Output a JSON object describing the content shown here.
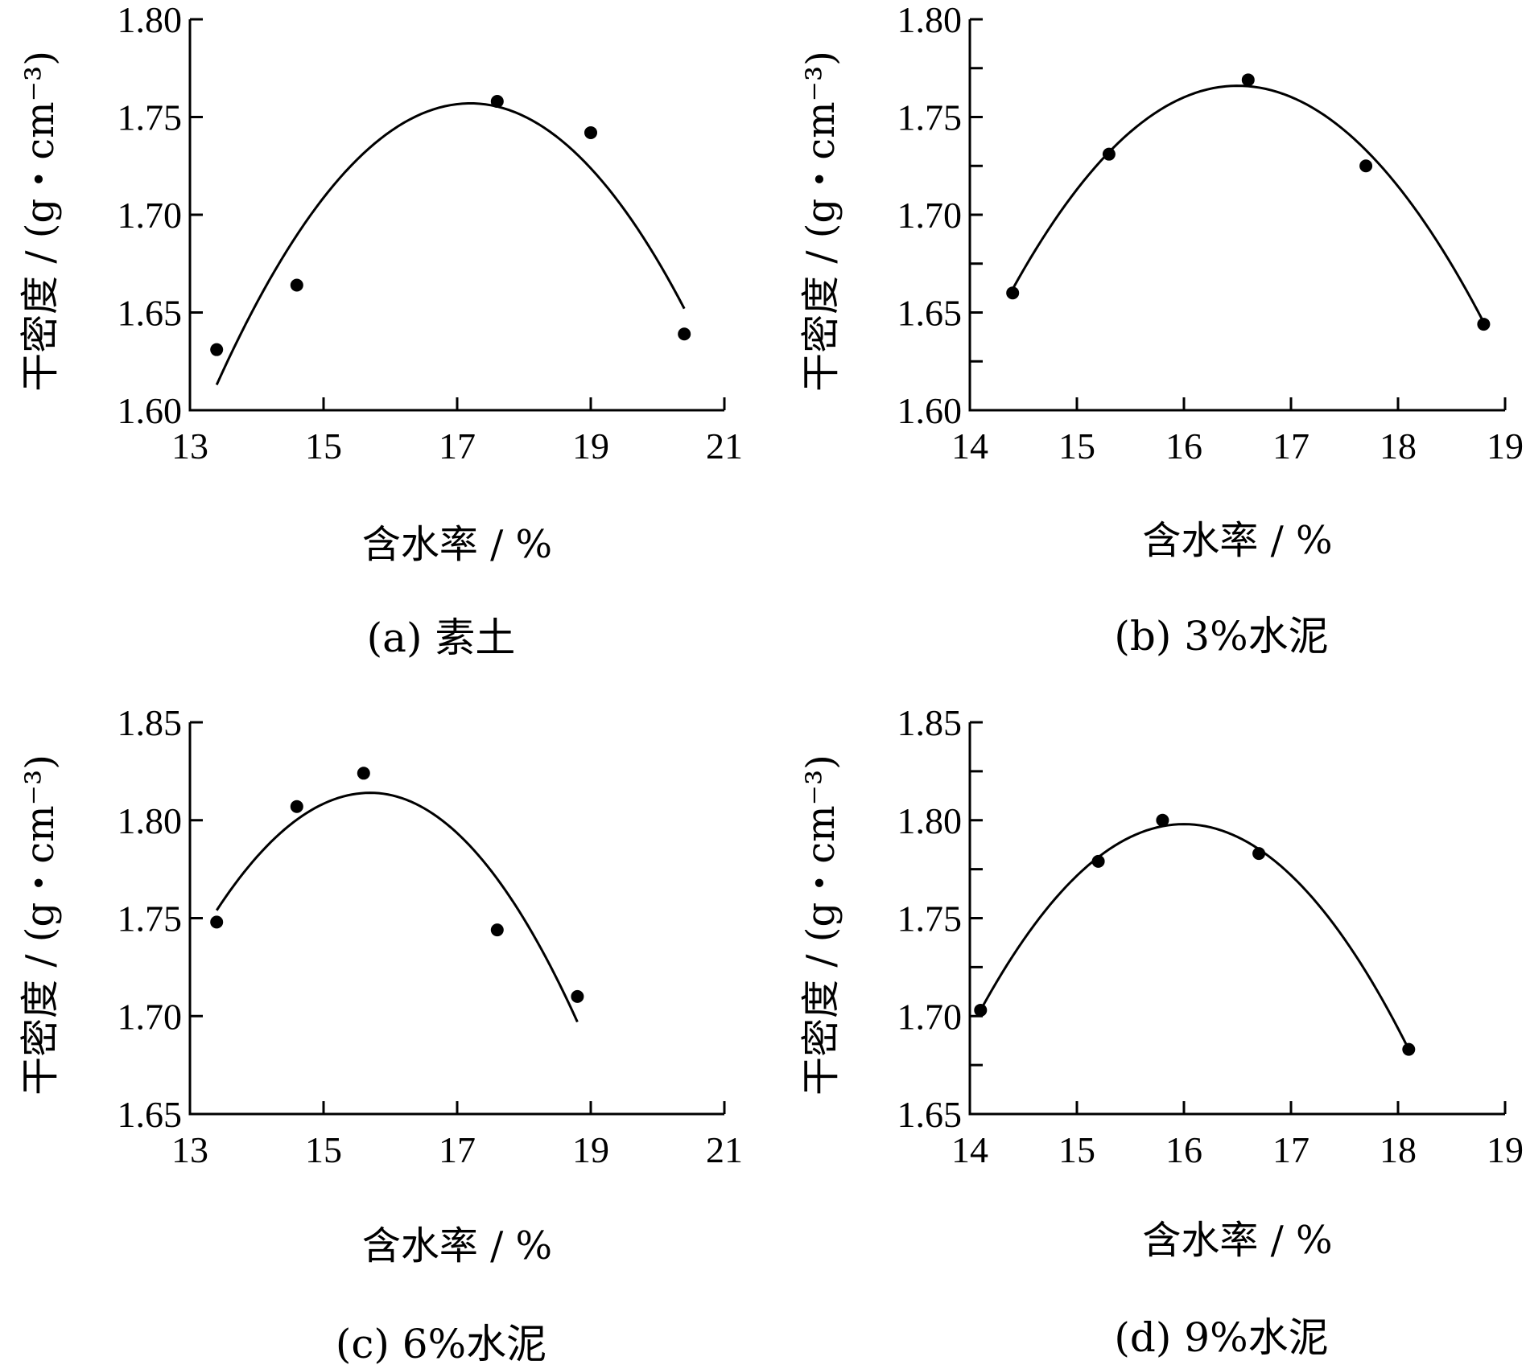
{
  "chart_data": [
    {
      "type": "scatter",
      "caption": "(a) 素土",
      "xlabel": "含水率 / %",
      "ylabel": "干密度 / (g・cm⁻³)",
      "xlim": [
        13,
        21
      ],
      "ylim": [
        1.6,
        1.8
      ],
      "xticks": [
        13,
        15,
        17,
        19,
        21
      ],
      "yticks": [
        1.6,
        1.65,
        1.7,
        1.75,
        1.8
      ],
      "xtick_labels": [
        "13",
        "15",
        "17",
        "19",
        "21"
      ],
      "ytick_labels": [
        "1.60",
        "1.65",
        "1.70",
        "1.75",
        "1.80"
      ],
      "points": [
        {
          "x": 13.4,
          "y": 1.631
        },
        {
          "x": 14.6,
          "y": 1.664
        },
        {
          "x": 17.6,
          "y": 1.758
        },
        {
          "x": 19.0,
          "y": 1.742
        },
        {
          "x": 20.4,
          "y": 1.639
        }
      ],
      "fit_curve": {
        "from": 13.4,
        "to": 20.4,
        "peak_x": 17.2,
        "peak_y": 1.757,
        "left_y": 1.613,
        "right_y": 1.652
      }
    },
    {
      "type": "scatter",
      "caption": "(b) 3%水泥",
      "xlabel": "含水率 / %",
      "ylabel": "干密度 / (g・cm⁻³)",
      "xlim": [
        14,
        19
      ],
      "ylim": [
        1.6,
        1.8
      ],
      "xticks": [
        14,
        15,
        16,
        17,
        18,
        19
      ],
      "yticks": [
        1.6,
        1.65,
        1.7,
        1.75,
        1.8
      ],
      "minor_yticks": [
        1.625,
        1.675,
        1.725,
        1.775
      ],
      "xtick_labels": [
        "14",
        "15",
        "16",
        "17",
        "18",
        "19"
      ],
      "ytick_labels": [
        "1.60",
        "1.65",
        "1.70",
        "1.75",
        "1.80"
      ],
      "points": [
        {
          "x": 14.4,
          "y": 1.66
        },
        {
          "x": 15.3,
          "y": 1.731
        },
        {
          "x": 16.6,
          "y": 1.769
        },
        {
          "x": 17.7,
          "y": 1.725
        },
        {
          "x": 18.8,
          "y": 1.644
        }
      ],
      "fit_curve": {
        "from": 14.4,
        "to": 18.8,
        "peak_x": 16.5,
        "peak_y": 1.766,
        "left_y": 1.662,
        "right_y": 1.645
      }
    },
    {
      "type": "scatter",
      "caption": "(c) 6%水泥",
      "xlabel": "含水率 / %",
      "ylabel": "干密度 / (g・cm⁻³)",
      "xlim": [
        13,
        21
      ],
      "ylim": [
        1.65,
        1.85
      ],
      "xticks": [
        13,
        15,
        17,
        19,
        21
      ],
      "yticks": [
        1.65,
        1.7,
        1.75,
        1.8,
        1.85
      ],
      "xtick_labels": [
        "13",
        "15",
        "17",
        "19",
        "21"
      ],
      "ytick_labels": [
        "1.65",
        "1.70",
        "1.75",
        "1.80",
        "1.85"
      ],
      "points": [
        {
          "x": 13.4,
          "y": 1.748
        },
        {
          "x": 14.6,
          "y": 1.807
        },
        {
          "x": 15.6,
          "y": 1.824
        },
        {
          "x": 17.6,
          "y": 1.744
        },
        {
          "x": 18.8,
          "y": 1.71
        }
      ],
      "fit_curve": {
        "from": 13.4,
        "to": 18.8,
        "peak_x": 15.7,
        "peak_y": 1.814,
        "left_y": 1.754,
        "right_y": 1.697
      }
    },
    {
      "type": "scatter",
      "caption": "(d) 9%水泥",
      "xlabel": "含水率 / %",
      "ylabel": "干密度 / (g・cm⁻³)",
      "xlim": [
        14,
        19
      ],
      "ylim": [
        1.65,
        1.85
      ],
      "xticks": [
        14,
        15,
        16,
        17,
        18,
        19
      ],
      "yticks": [
        1.65,
        1.7,
        1.75,
        1.8,
        1.85
      ],
      "minor_yticks": [
        1.675,
        1.725,
        1.775,
        1.825
      ],
      "xtick_labels": [
        "14",
        "15",
        "16",
        "17",
        "18",
        "19"
      ],
      "ytick_labels": [
        "1.65",
        "1.70",
        "1.75",
        "1.80",
        "1.85"
      ],
      "points": [
        {
          "x": 14.1,
          "y": 1.703
        },
        {
          "x": 15.2,
          "y": 1.779
        },
        {
          "x": 15.8,
          "y": 1.8
        },
        {
          "x": 16.7,
          "y": 1.783
        },
        {
          "x": 18.1,
          "y": 1.683
        }
      ],
      "fit_curve": {
        "from": 14.1,
        "to": 18.1,
        "peak_x": 16.0,
        "peak_y": 1.798,
        "left_y": 1.703,
        "right_y": 1.683
      }
    }
  ]
}
